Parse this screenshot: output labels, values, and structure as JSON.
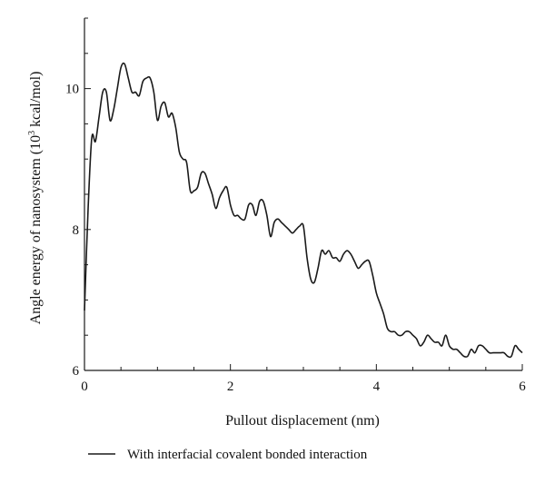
{
  "colors": {
    "line": "#1a1a1a",
    "axis": "#1a1a1a",
    "background": "#ffffff"
  },
  "chart_data": {
    "type": "line",
    "title": "",
    "xlabel": "Pullout displacement (nm)",
    "ylabel_main": "Angle energy of nanosystem (10",
    "ylabel_sup": "3",
    "ylabel_rest": " kcal/mol)",
    "xlim": [
      0,
      6
    ],
    "ylim": [
      6,
      11
    ],
    "xticks": [
      0,
      2,
      4,
      6
    ],
    "xtick_labels": [
      "0",
      "2",
      "4",
      "6"
    ],
    "yticks": [
      6,
      8,
      10
    ],
    "ytick_labels": [
      "6",
      "8",
      "10"
    ],
    "grid": false,
    "legend_position": "bottom",
    "series": [
      {
        "name": "With interfacial covalent bonded interaction",
        "x": [
          0.0,
          0.05,
          0.1,
          0.15,
          0.2,
          0.25,
          0.3,
          0.35,
          0.4,
          0.45,
          0.5,
          0.55,
          0.6,
          0.65,
          0.7,
          0.75,
          0.8,
          0.85,
          0.9,
          0.95,
          1.0,
          1.05,
          1.1,
          1.15,
          1.2,
          1.25,
          1.3,
          1.35,
          1.4,
          1.45,
          1.5,
          1.55,
          1.6,
          1.65,
          1.7,
          1.75,
          1.8,
          1.85,
          1.9,
          1.95,
          2.0,
          2.05,
          2.1,
          2.15,
          2.2,
          2.25,
          2.3,
          2.35,
          2.4,
          2.45,
          2.5,
          2.55,
          2.6,
          2.65,
          2.7,
          2.75,
          2.8,
          2.85,
          2.9,
          2.95,
          3.0,
          3.05,
          3.1,
          3.15,
          3.2,
          3.25,
          3.3,
          3.35,
          3.4,
          3.45,
          3.5,
          3.55,
          3.6,
          3.65,
          3.7,
          3.75,
          3.8,
          3.85,
          3.9,
          3.95,
          4.0,
          4.05,
          4.1,
          4.15,
          4.2,
          4.25,
          4.3,
          4.35,
          4.4,
          4.45,
          4.5,
          4.55,
          4.6,
          4.65,
          4.7,
          4.75,
          4.8,
          4.85,
          4.9,
          4.95,
          5.0,
          5.05,
          5.1,
          5.15,
          5.2,
          5.25,
          5.3,
          5.35,
          5.4,
          5.45,
          5.5,
          5.55,
          5.6,
          5.65,
          5.7,
          5.75,
          5.8,
          5.85,
          5.9,
          5.95,
          6.0
        ],
        "y": [
          6.85,
          8.3,
          9.3,
          9.25,
          9.6,
          9.95,
          9.95,
          9.55,
          9.7,
          10.0,
          10.3,
          10.35,
          10.15,
          9.95,
          9.95,
          9.9,
          10.1,
          10.15,
          10.15,
          9.95,
          9.55,
          9.75,
          9.8,
          9.6,
          9.65,
          9.45,
          9.1,
          9.0,
          8.95,
          8.55,
          8.55,
          8.6,
          8.8,
          8.8,
          8.65,
          8.5,
          8.3,
          8.45,
          8.55,
          8.6,
          8.35,
          8.2,
          8.2,
          8.15,
          8.15,
          8.35,
          8.35,
          8.2,
          8.4,
          8.4,
          8.2,
          7.9,
          8.1,
          8.15,
          8.1,
          8.05,
          8.0,
          7.95,
          8.0,
          8.05,
          8.05,
          7.6,
          7.3,
          7.25,
          7.45,
          7.7,
          7.65,
          7.7,
          7.6,
          7.6,
          7.55,
          7.65,
          7.7,
          7.65,
          7.55,
          7.45,
          7.5,
          7.55,
          7.55,
          7.35,
          7.1,
          6.95,
          6.8,
          6.6,
          6.55,
          6.55,
          6.5,
          6.5,
          6.55,
          6.55,
          6.5,
          6.45,
          6.35,
          6.4,
          6.5,
          6.45,
          6.4,
          6.4,
          6.35,
          6.5,
          6.35,
          6.3,
          6.3,
          6.25,
          6.2,
          6.2,
          6.3,
          6.25,
          6.35,
          6.35,
          6.3,
          6.25,
          6.25,
          6.25,
          6.25,
          6.25,
          6.2,
          6.2,
          6.35,
          6.3,
          6.25
        ]
      }
    ]
  }
}
